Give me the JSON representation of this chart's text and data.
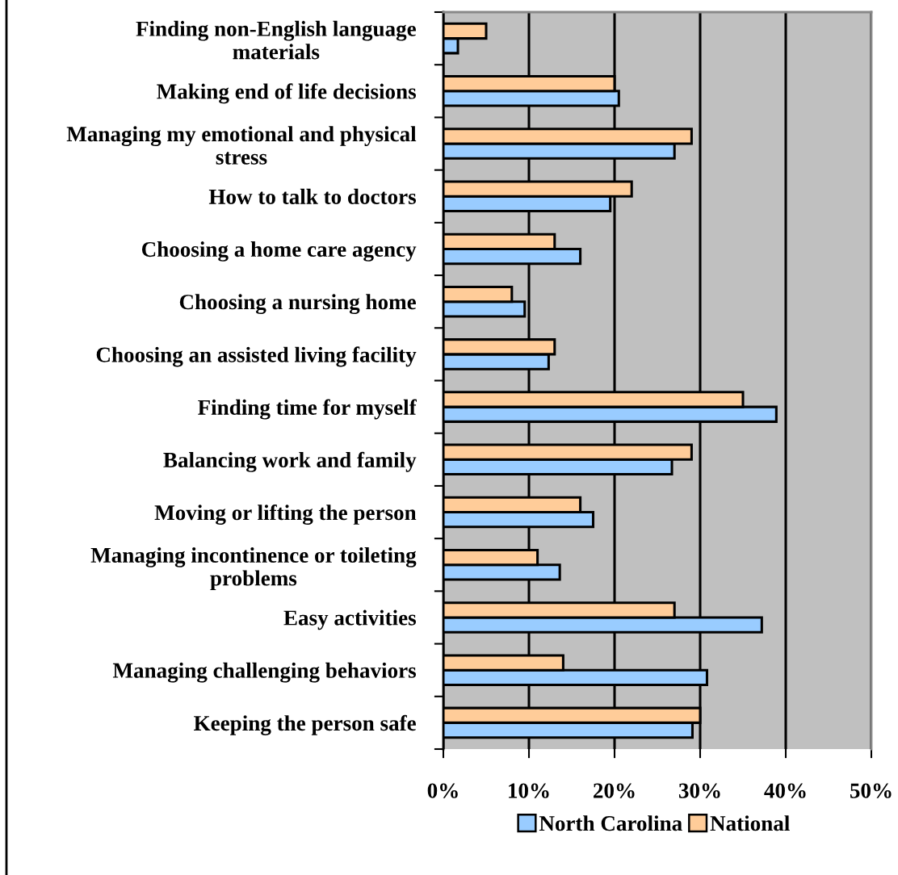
{
  "chart_data": {
    "type": "bar",
    "orientation": "horizontal",
    "categories": [
      "Finding non-English language\nmaterials",
      "Making end of life decisions",
      "Managing my emotional and physical\nstress",
      "How to talk to doctors",
      "Choosing a home care agency",
      "Choosing a nursing home",
      "Choosing an assisted living facility",
      "Finding time for myself",
      "Balancing work and family",
      "Moving or lifting the person",
      "Managing incontinence or toileting\nproblems",
      "Easy activities",
      "Managing challenging behaviors",
      "Keeping the person safe"
    ],
    "series": [
      {
        "name": "North Carolina",
        "color": "#99ccff",
        "values": [
          1.7,
          20.5,
          27.0,
          19.5,
          16.0,
          9.5,
          12.3,
          38.9,
          26.7,
          17.5,
          13.6,
          37.2,
          30.8,
          29.1
        ]
      },
      {
        "name": "National",
        "color": "#ffcc99",
        "values": [
          5,
          20,
          29,
          22,
          13,
          8,
          13,
          35,
          29,
          16,
          11,
          27,
          14,
          30
        ]
      }
    ],
    "xlim": [
      0,
      50
    ],
    "xticks": [
      {
        "value": 0,
        "label": "0%"
      },
      {
        "value": 10,
        "label": "10%"
      },
      {
        "value": 20,
        "label": "20%"
      },
      {
        "value": 30,
        "label": "30%"
      },
      {
        "value": 40,
        "label": "40%"
      },
      {
        "value": 50,
        "label": "50%"
      }
    ],
    "grid": "x",
    "legend": "bottom"
  }
}
